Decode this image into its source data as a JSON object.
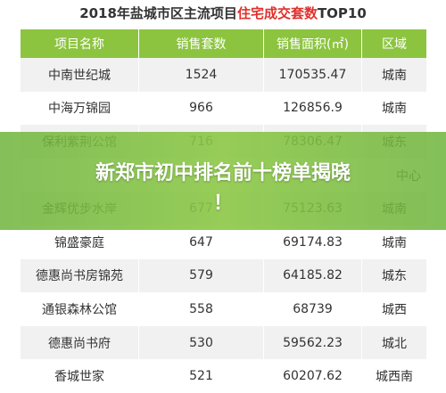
{
  "header": {
    "title_prefix": "2018年盐城市区主流项目",
    "title_highlight": "住宅成交套数",
    "title_suffix": "TOP10"
  },
  "table": {
    "columns": [
      "项目名称",
      "销售套数",
      "销售面积(㎡)",
      "区域"
    ],
    "rows": [
      [
        "中南世纪城",
        "1524",
        "170535.47",
        "城南"
      ],
      [
        "中海万锦园",
        "966",
        "126856.9",
        "城南"
      ],
      [
        "保利紫荆公馆",
        "716",
        "78306.47",
        "城东"
      ],
      null,
      [
        "金辉优步水岸",
        "677",
        "75123.63",
        "城南"
      ],
      [
        "锦盛豪庭",
        "647",
        "69174.83",
        "城南"
      ],
      [
        "德惠尚书房锦苑",
        "579",
        "64185.82",
        "城东"
      ],
      [
        "通银森林公馆",
        "558",
        "68739",
        "城西"
      ],
      [
        "德惠尚书府",
        "530",
        "59562.23",
        "城北"
      ],
      [
        "香城世家",
        "521",
        "60207.62",
        "城西南"
      ]
    ],
    "hidden_row_fragment": "中心"
  },
  "banner": {
    "line1": "新郑市初中排名前十榜单揭晓",
    "line2": "！"
  }
}
